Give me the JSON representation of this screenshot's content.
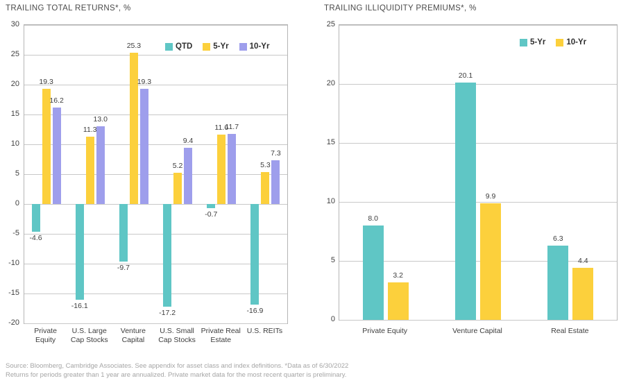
{
  "chart_data": [
    {
      "type": "bar",
      "title": "TRAILING TOTAL RETURNS*, %",
      "ylabel": "%",
      "ylim": [
        -20,
        30
      ],
      "ytick_step": 5,
      "grid": true,
      "legend_position": "top-right-inside",
      "categories": [
        "Private\nEquity",
        "U.S. Large\nCap Stocks",
        "Venture\nCapital",
        "U.S. Small\nCap Stocks",
        "Private Real\nEstate",
        "U.S. REITs"
      ],
      "series": [
        {
          "name": "QTD",
          "color": "#5fc6c5",
          "values": [
            -4.6,
            -16.1,
            -9.7,
            -17.2,
            -0.7,
            -16.9
          ]
        },
        {
          "name": "5-Yr",
          "color": "#fcd03c",
          "values": [
            19.3,
            11.3,
            25.3,
            5.2,
            11.6,
            5.3
          ]
        },
        {
          "name": "10-Yr",
          "color": "#9e9eec",
          "values": [
            16.2,
            13.0,
            19.3,
            9.4,
            11.7,
            7.3
          ]
        }
      ]
    },
    {
      "type": "bar",
      "title": "TRAILING ILLIQUIDITY PREMIUMS*, %",
      "ylabel": "%",
      "ylim": [
        0,
        25
      ],
      "ytick_step": 5,
      "grid": true,
      "legend_position": "top-right-inside",
      "categories": [
        "Private Equity",
        "Venture Capital",
        "Real Estate"
      ],
      "series": [
        {
          "name": "5-Yr",
          "color": "#5fc6c5",
          "values": [
            8.0,
            20.1,
            6.3
          ]
        },
        {
          "name": "10-Yr",
          "color": "#fcd03c",
          "values": [
            3.2,
            9.9,
            4.4
          ]
        }
      ]
    }
  ],
  "footer": {
    "line1": "Source: Bloomberg, Cambridge Associates. See appendix for asset class and index definitions. *Data as of 6/30/2022",
    "line2": "Returns for periods greater than 1 year are annualized. Private market data for the most recent quarter is preliminary."
  }
}
